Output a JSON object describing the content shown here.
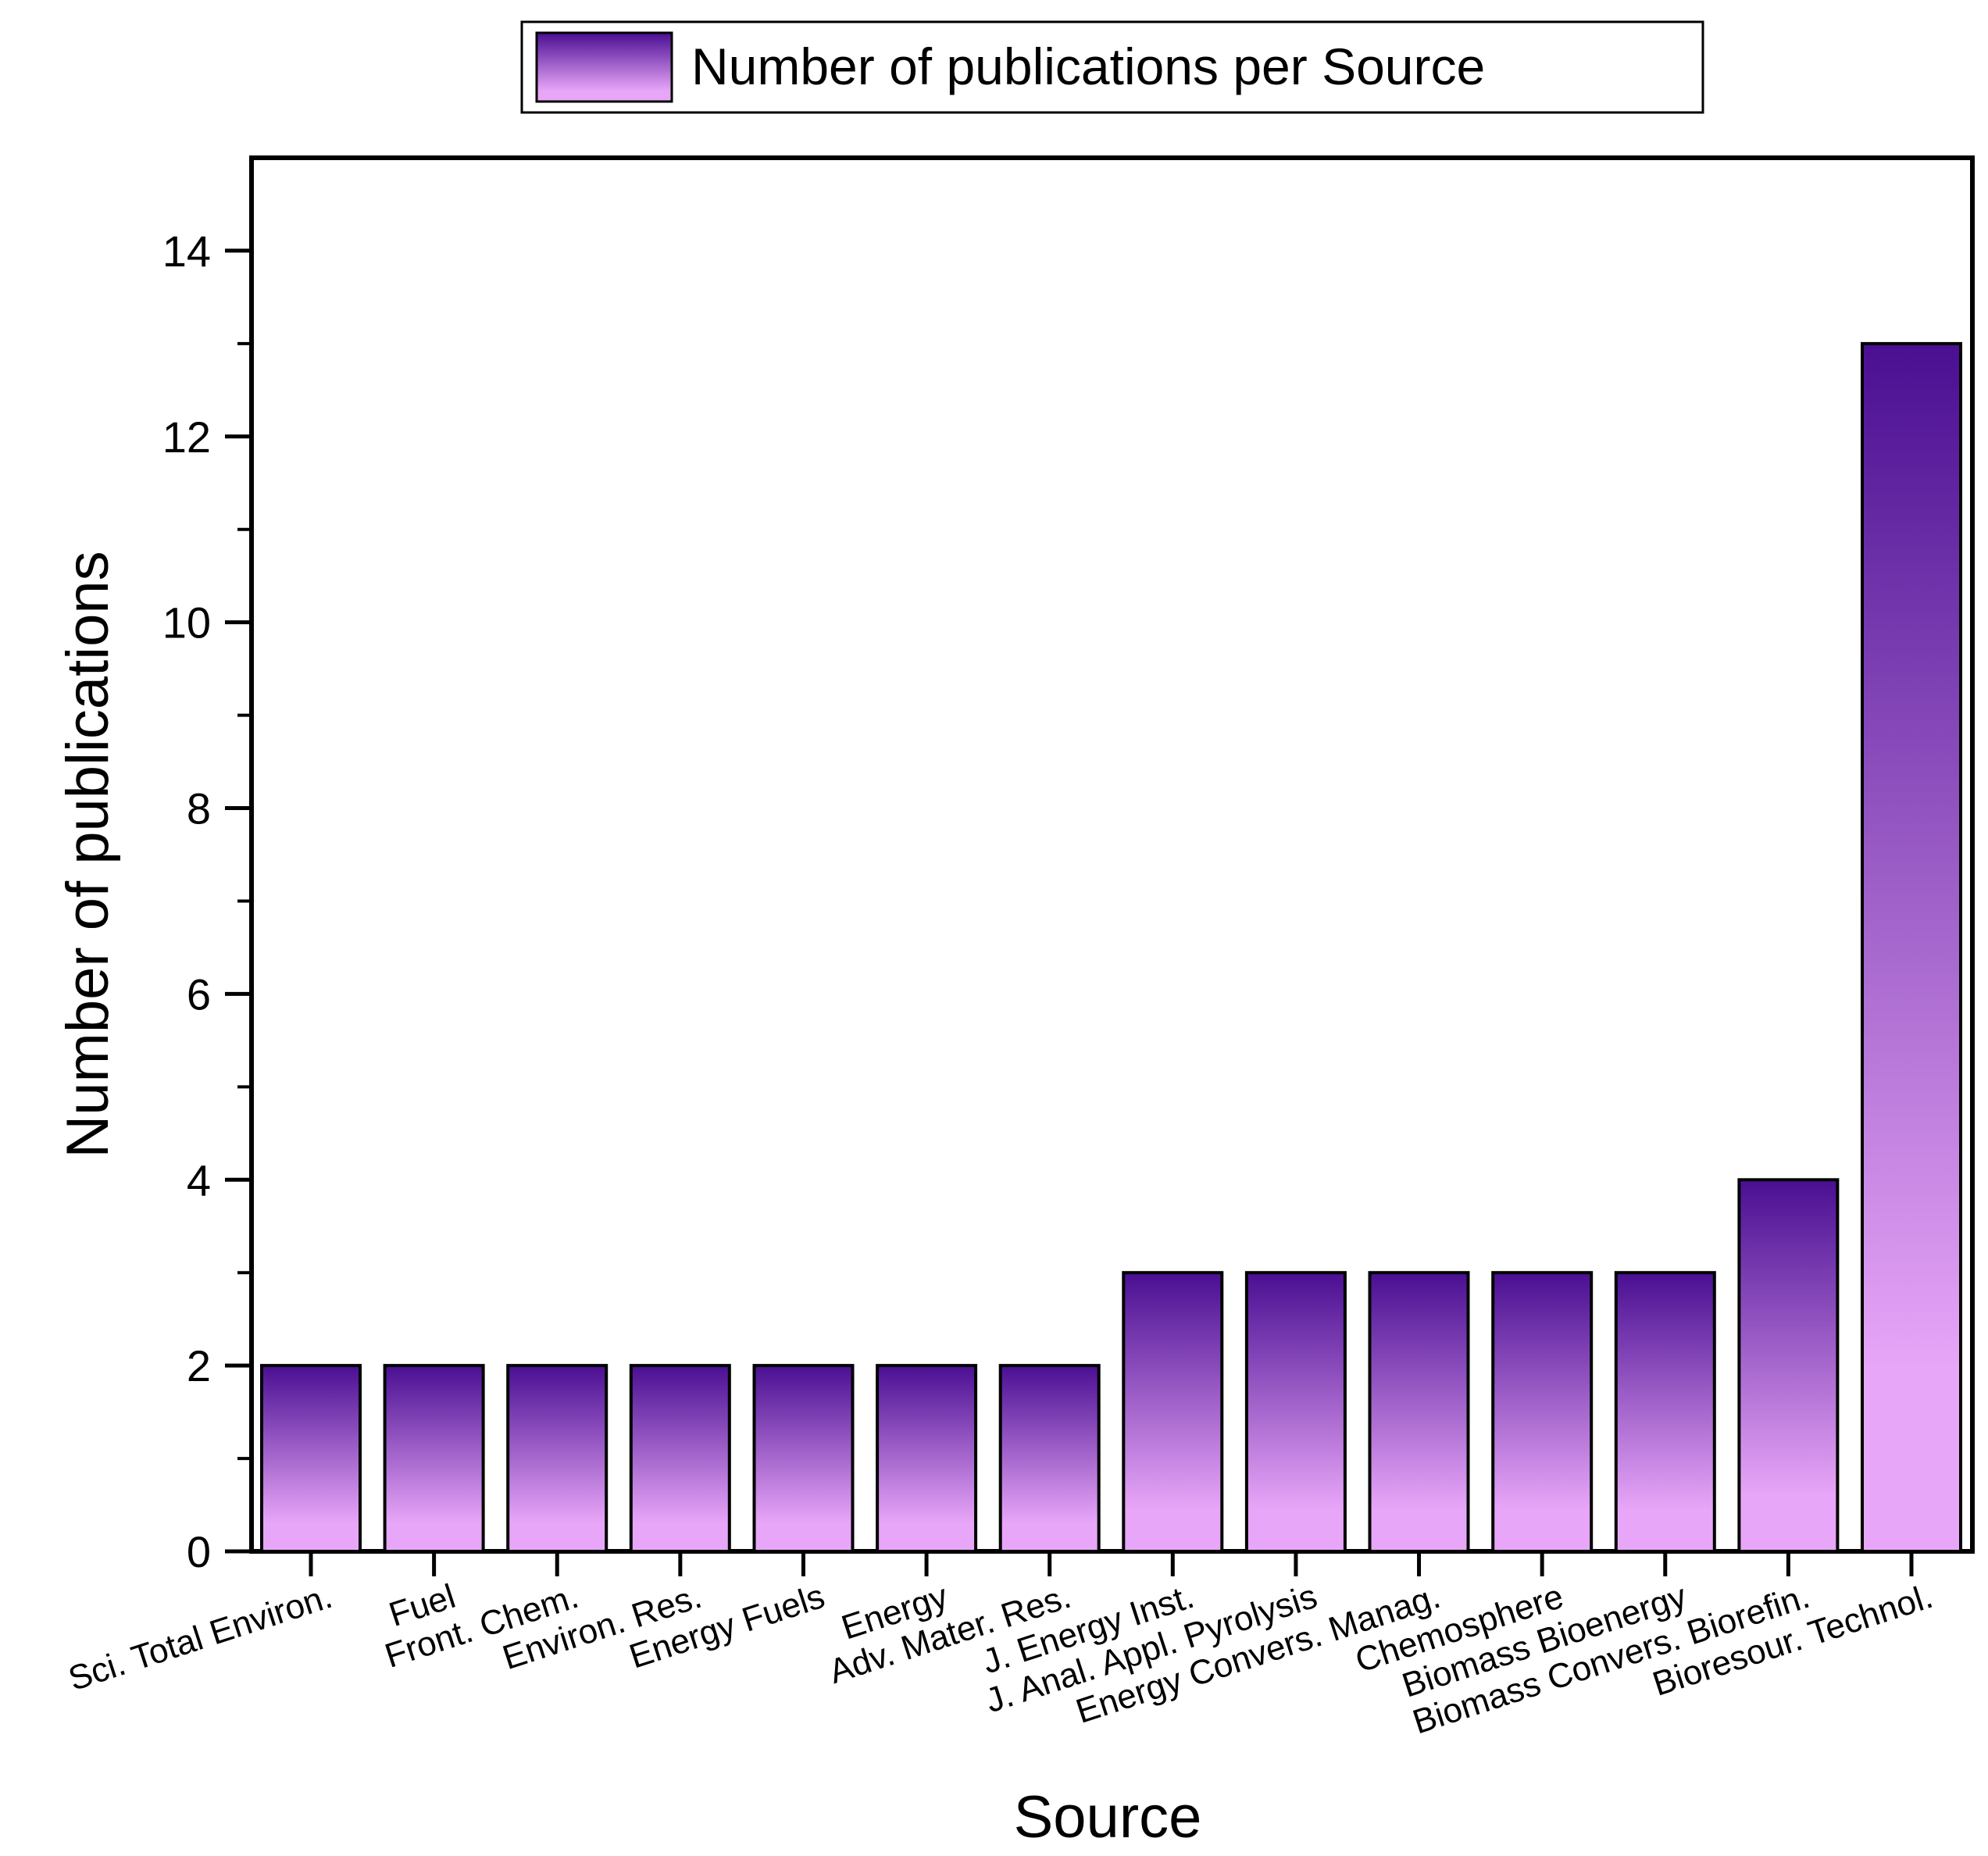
{
  "colors": {
    "bar_top": "#4a0f92",
    "bar_bottom": "#e8a6f8",
    "axis": "#000000"
  },
  "chart_data": {
    "type": "bar",
    "categories": [
      "Sci. Total Environ.",
      "Fuel",
      "Front. Chem.",
      "Environ. Res.",
      "Energy Fuels",
      "Energy",
      "Adv. Mater. Res.",
      "J. Energy Inst.",
      "J. Anal. Appl. Pyrolysis",
      "Energy Convers. Manag.",
      "Chemosphere",
      "Biomass Bioenergy",
      "Biomass Convers. Biorefin.",
      "Bioresour. Technol."
    ],
    "series": [
      {
        "name": "Number of publications per Source",
        "values": [
          2,
          2,
          2,
          2,
          2,
          2,
          2,
          3,
          3,
          3,
          3,
          3,
          4,
          13
        ]
      }
    ],
    "xlabel": "Source",
    "ylabel": "Number of publications",
    "ylim": [
      0,
      15
    ],
    "yticks": [
      "0",
      "2",
      "4",
      "6",
      "8",
      "10",
      "12",
      "14"
    ],
    "grid": false,
    "legend": "top-center"
  }
}
